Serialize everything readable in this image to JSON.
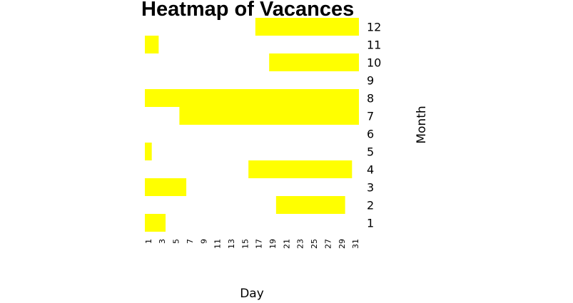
{
  "chart_data": {
    "type": "heatmap",
    "title": "Heatmap of Vacances",
    "xlabel": "Day",
    "ylabel": "Month",
    "x_range": [
      1,
      31
    ],
    "y_range": [
      1,
      12
    ],
    "x_ticks": [
      1,
      3,
      5,
      7,
      9,
      11,
      13,
      15,
      17,
      19,
      21,
      23,
      25,
      27,
      29,
      31
    ],
    "y_ticks": [
      1,
      2,
      3,
      4,
      5,
      6,
      7,
      8,
      9,
      10,
      11,
      12
    ],
    "grid": false,
    "legend": "none",
    "fill_color": "#ffff00",
    "background_color": "#ffffff",
    "vacation_ranges": [
      {
        "month": 1,
        "start_day": 1,
        "end_day": 3
      },
      {
        "month": 2,
        "start_day": 20,
        "end_day": 29
      },
      {
        "month": 3,
        "start_day": 1,
        "end_day": 6
      },
      {
        "month": 4,
        "start_day": 16,
        "end_day": 30
      },
      {
        "month": 5,
        "start_day": 1,
        "end_day": 1
      },
      {
        "month": 7,
        "start_day": 6,
        "end_day": 31
      },
      {
        "month": 8,
        "start_day": 1,
        "end_day": 31
      },
      {
        "month": 10,
        "start_day": 19,
        "end_day": 31
      },
      {
        "month": 11,
        "start_day": 1,
        "end_day": 2
      },
      {
        "month": 12,
        "start_day": 17,
        "end_day": 31
      }
    ]
  }
}
